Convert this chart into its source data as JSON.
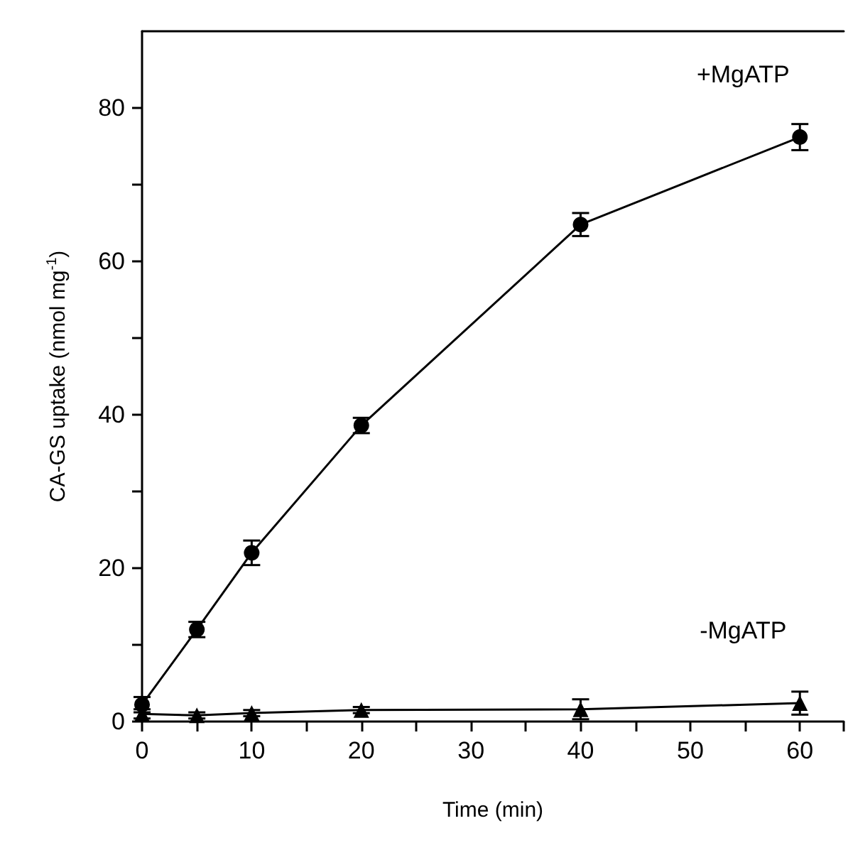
{
  "chart_data": {
    "type": "line",
    "xlabel": "Time (min)",
    "ylabel": "CA-GS uptake (nmol mg$^{-1}$)",
    "x": [
      0,
      5,
      10,
      20,
      40,
      60
    ],
    "series": [
      {
        "name": "+MgATP",
        "color": "#000000",
        "marker": "circle",
        "values": [
          2.2,
          12,
          22,
          38.6,
          64.8,
          76.2
        ],
        "errors": [
          1,
          1,
          1.6,
          1,
          1.5,
          1.7
        ]
      },
      {
        "name": "-MgATP",
        "color": "#000000",
        "marker": "triangle",
        "values": [
          1,
          0.8,
          1.1,
          1.5,
          1.6,
          2.4
        ],
        "errors": [
          0.6,
          0.4,
          0.4,
          0.4,
          1.3,
          1.5
        ]
      }
    ],
    "xlim": [
      0,
      64
    ],
    "ylim": [
      0,
      90
    ],
    "xticks": [
      0,
      {
        "value": 5,
        "label": null
      },
      10,
      {
        "value": 15,
        "label": null
      },
      20,
      {
        "value": 25,
        "label": null
      },
      30,
      {
        "value": 35,
        "label": null
      },
      40,
      {
        "value": 45,
        "label": null
      },
      50,
      {
        "value": 55,
        "label": null
      },
      60
    ],
    "yticks": [
      0,
      {
        "value": 10,
        "label": null
      },
      20,
      {
        "value": 30,
        "label": null
      },
      40,
      {
        "value": 50,
        "label": null
      },
      60,
      {
        "value": 70,
        "label": null
      },
      80
    ],
    "grid": false,
    "legend": false,
    "line_style": "solid"
  }
}
